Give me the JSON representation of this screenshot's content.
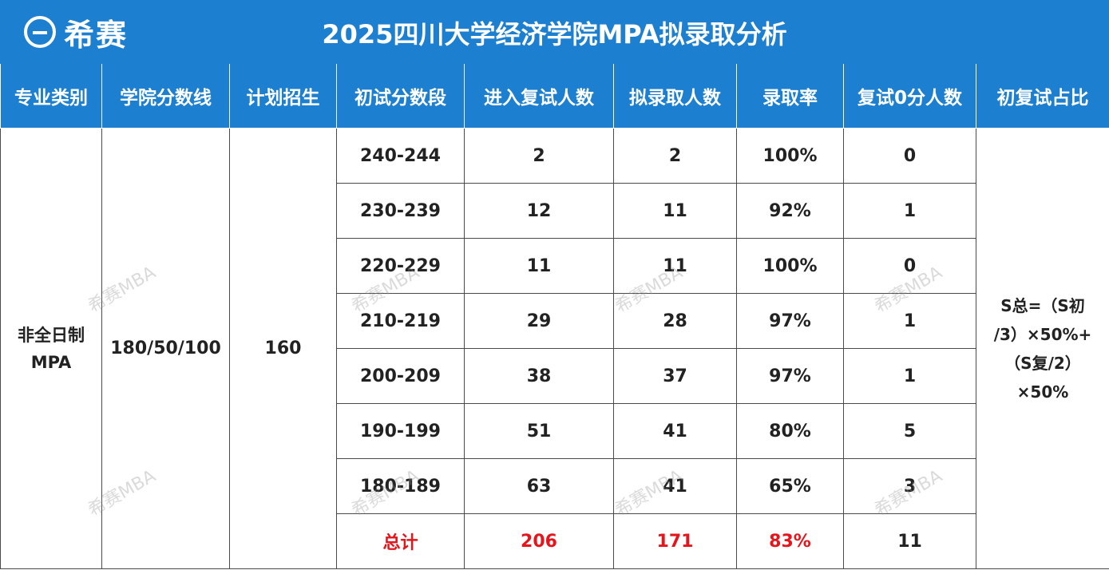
{
  "header": {
    "logo_text": "希赛",
    "title": "2025四川大学经济学院MPA拟录取分析"
  },
  "columns": [
    "专业类别",
    "学院分数线",
    "计划招生",
    "初试分数段",
    "进入复试人数",
    "拟录取人数",
    "录取率",
    "复试0分人数",
    "初复试占比"
  ],
  "program": {
    "category_line1": "非全日制",
    "category_line2": "MPA",
    "score_line": "180/50/100",
    "plan": "160"
  },
  "rows": [
    {
      "range": "240-244",
      "retest": "2",
      "admitted": "2",
      "rate": "100%",
      "zero": "0"
    },
    {
      "range": "230-239",
      "retest": "12",
      "admitted": "11",
      "rate": "92%",
      "zero": "1"
    },
    {
      "range": "220-229",
      "retest": "11",
      "admitted": "11",
      "rate": "100%",
      "zero": "0"
    },
    {
      "range": "210-219",
      "retest": "29",
      "admitted": "28",
      "rate": "97%",
      "zero": "1"
    },
    {
      "range": "200-209",
      "retest": "38",
      "admitted": "37",
      "rate": "97%",
      "zero": "1"
    },
    {
      "range": "190-199",
      "retest": "51",
      "admitted": "41",
      "rate": "80%",
      "zero": "5"
    },
    {
      "range": "180-189",
      "retest": "63",
      "admitted": "41",
      "rate": "65%",
      "zero": "3"
    }
  ],
  "total": {
    "label": "总计",
    "retest": "206",
    "admitted": "171",
    "rate": "83%",
    "zero": "11"
  },
  "formula": {
    "line1": "S总=（S初",
    "line2": "/3）×50%+",
    "line3": "（S复/2）",
    "line4": "×50%"
  },
  "watermark": "希赛MBA",
  "colors": {
    "header_bg": "#1c7fd0",
    "total_red": "#e8141b"
  }
}
